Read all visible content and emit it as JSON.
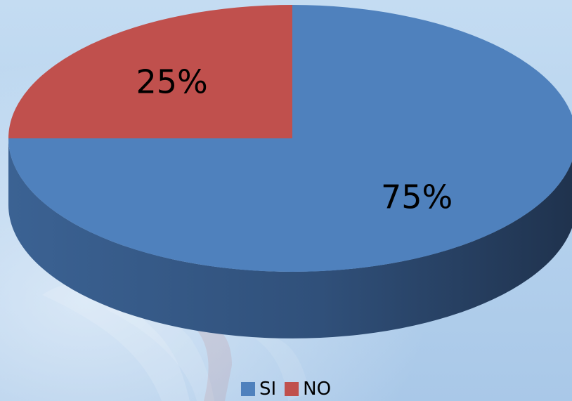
{
  "chart_data": {
    "type": "pie",
    "style": "3d",
    "categories": [
      "SI",
      "NO"
    ],
    "values": [
      75,
      25
    ],
    "data_labels": [
      "75%",
      "25%"
    ],
    "colors": [
      "#4f81bd",
      "#c0504d"
    ],
    "legend_position": "bottom"
  },
  "legend": {
    "items": [
      {
        "label": "SI",
        "color": "#4f81bd"
      },
      {
        "label": "NO",
        "color": "#c0504d"
      }
    ]
  }
}
